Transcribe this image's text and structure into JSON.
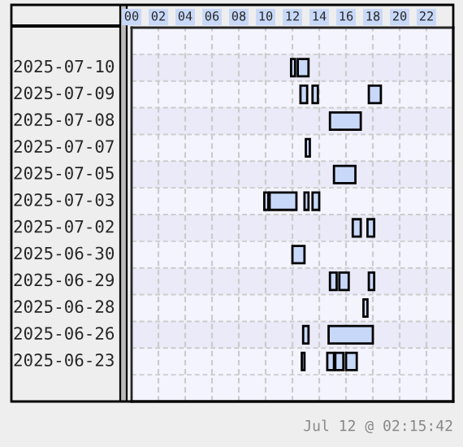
{
  "chart_data": {
    "type": "bar",
    "orientation": "horizontal",
    "categories": [
      "2025-07-10",
      "2025-07-09",
      "2025-07-08",
      "2025-07-07",
      "2025-07-05",
      "2025-07-03",
      "2025-07-02",
      "2025-06-30",
      "2025-06-29",
      "2025-06-28",
      "2025-06-26",
      "2025-06-23"
    ],
    "series": [
      {
        "color": "#c8d8f8",
        "base": [
          11.9,
          12.6,
          14.8,
          13.0,
          15.1,
          9.9,
          16.5,
          12.0,
          14.8,
          17.3,
          12.8,
          12.7
        ],
        "values": [
          0.3,
          0.5,
          2.3,
          0.3,
          1.6,
          0.3,
          0.6,
          0.9,
          0.5,
          0.3,
          0.4,
          0.2
        ]
      },
      {
        "color": "#c8d8f8",
        "base": [
          12.4,
          13.5,
          null,
          null,
          null,
          10.3,
          17.6,
          null,
          15.5,
          null,
          14.7,
          14.6
        ],
        "values": [
          0.8,
          0.4,
          null,
          null,
          null,
          2.0,
          0.5,
          null,
          0.7,
          null,
          3.3,
          0.5
        ]
      },
      {
        "color": "#c8d8f8",
        "base": [
          null,
          17.7,
          null,
          null,
          null,
          12.9,
          null,
          null,
          17.7,
          null,
          null,
          15.2
        ],
        "values": [
          null,
          0.9,
          null,
          null,
          null,
          0.3,
          null,
          null,
          0.4,
          null,
          null,
          0.6
        ]
      },
      {
        "color": "#c8d8f8",
        "base": [
          null,
          null,
          null,
          null,
          null,
          13.5,
          null,
          null,
          null,
          null,
          null,
          16.0
        ],
        "values": [
          null,
          null,
          null,
          null,
          null,
          0.5,
          null,
          null,
          null,
          null,
          null,
          0.8
        ]
      }
    ],
    "xlim": [
      0,
      24
    ],
    "xticks": [
      {
        "value": 0,
        "label": "00"
      },
      {
        "value": 2,
        "label": "02"
      },
      {
        "value": 4,
        "label": "04"
      },
      {
        "value": 6,
        "label": "06"
      },
      {
        "value": 8,
        "label": "08"
      },
      10,
      12,
      14,
      16,
      18,
      20,
      22
    ],
    "grid": "x",
    "annotations": [
      "Jul 12 @ 02:15:42"
    ]
  }
}
